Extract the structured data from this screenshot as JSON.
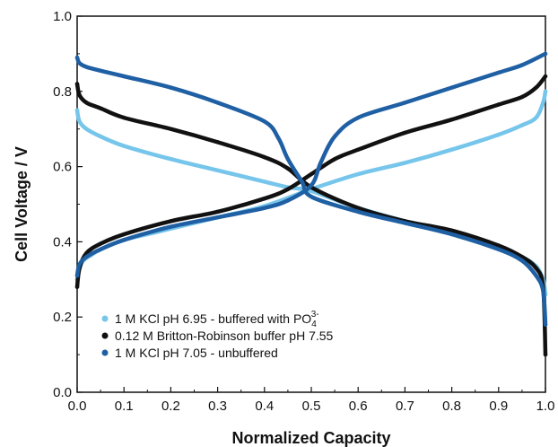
{
  "chart_data": {
    "type": "line",
    "title": "",
    "xlabel": "Normalized Capacity",
    "ylabel": "Cell Voltage / V",
    "xlim": [
      0.0,
      1.0
    ],
    "ylim": [
      0.0,
      1.0
    ],
    "x_ticks": [
      "0.0",
      "0.1",
      "0.2",
      "0.3",
      "0.4",
      "0.5",
      "0.6",
      "0.7",
      "0.8",
      "0.9",
      "1.0"
    ],
    "y_ticks": [
      "0.0",
      "0.2",
      "0.4",
      "0.6",
      "0.8",
      "1.0"
    ],
    "grid": false,
    "legend_position": "bottom-left",
    "series": [
      {
        "name": "1 M KCl pH 6.95 - buffered with PO",
        "name_sub": "4",
        "name_sup": "3-",
        "color": "#76c5eb",
        "charge": {
          "x": [
            0.0,
            0.01,
            0.03,
            0.05,
            0.1,
            0.15,
            0.2,
            0.3,
            0.4,
            0.5,
            0.6,
            0.7,
            0.8,
            0.9,
            0.95,
            0.98,
            0.995,
            1.0
          ],
          "y": [
            0.3,
            0.345,
            0.365,
            0.38,
            0.405,
            0.42,
            0.435,
            0.465,
            0.495,
            0.54,
            0.58,
            0.61,
            0.645,
            0.685,
            0.71,
            0.73,
            0.77,
            0.8
          ]
        },
        "discharge": {
          "x": [
            0.0,
            0.005,
            0.02,
            0.05,
            0.1,
            0.2,
            0.3,
            0.4,
            0.45,
            0.5,
            0.6,
            0.7,
            0.8,
            0.9,
            0.95,
            0.98,
            0.995,
            1.0
          ],
          "y": [
            0.75,
            0.72,
            0.7,
            0.68,
            0.655,
            0.62,
            0.59,
            0.56,
            0.545,
            0.535,
            0.49,
            0.455,
            0.425,
            0.385,
            0.36,
            0.335,
            0.3,
            0.26
          ]
        }
      },
      {
        "name": "0.12 M Britton-Robinson buffer pH 7.55",
        "color": "#111111",
        "charge": {
          "x": [
            0.0,
            0.005,
            0.02,
            0.05,
            0.1,
            0.2,
            0.3,
            0.4,
            0.45,
            0.5,
            0.55,
            0.6,
            0.7,
            0.8,
            0.9,
            0.95,
            0.98,
            1.0
          ],
          "y": [
            0.28,
            0.33,
            0.37,
            0.395,
            0.42,
            0.455,
            0.48,
            0.515,
            0.54,
            0.58,
            0.62,
            0.645,
            0.69,
            0.725,
            0.765,
            0.785,
            0.81,
            0.84
          ]
        },
        "discharge": {
          "x": [
            0.0,
            0.005,
            0.02,
            0.05,
            0.1,
            0.2,
            0.3,
            0.4,
            0.45,
            0.5,
            0.6,
            0.7,
            0.8,
            0.9,
            0.95,
            0.98,
            0.995,
            1.0
          ],
          "y": [
            0.82,
            0.79,
            0.77,
            0.755,
            0.73,
            0.7,
            0.665,
            0.625,
            0.595,
            0.545,
            0.49,
            0.455,
            0.43,
            0.39,
            0.36,
            0.33,
            0.28,
            0.1
          ]
        }
      },
      {
        "name": "1 M KCl pH 7.05 - unbuffered",
        "color": "#1f5fa3",
        "charge": {
          "x": [
            0.0,
            0.005,
            0.02,
            0.05,
            0.1,
            0.2,
            0.3,
            0.4,
            0.45,
            0.5,
            0.52,
            0.55,
            0.6,
            0.7,
            0.8,
            0.9,
            0.95,
            1.0
          ],
          "y": [
            0.31,
            0.34,
            0.36,
            0.38,
            0.405,
            0.44,
            0.465,
            0.49,
            0.51,
            0.55,
            0.61,
            0.68,
            0.73,
            0.77,
            0.81,
            0.85,
            0.87,
            0.9
          ]
        },
        "discharge": {
          "x": [
            0.0,
            0.005,
            0.02,
            0.05,
            0.1,
            0.2,
            0.3,
            0.4,
            0.43,
            0.45,
            0.48,
            0.5,
            0.6,
            0.7,
            0.8,
            0.9,
            0.95,
            0.98,
            0.995,
            1.0
          ],
          "y": [
            0.89,
            0.875,
            0.865,
            0.855,
            0.84,
            0.81,
            0.77,
            0.72,
            0.675,
            0.62,
            0.56,
            0.52,
            0.48,
            0.45,
            0.42,
            0.38,
            0.35,
            0.31,
            0.27,
            0.18
          ]
        }
      }
    ]
  }
}
